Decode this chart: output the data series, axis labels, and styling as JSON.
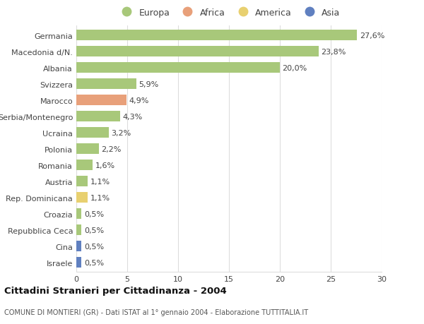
{
  "countries": [
    "Germania",
    "Macedonia d/N.",
    "Albania",
    "Svizzera",
    "Marocco",
    "Serbia/Montenegro",
    "Ucraina",
    "Polonia",
    "Romania",
    "Austria",
    "Rep. Dominicana",
    "Croazia",
    "Repubblica Ceca",
    "Cina",
    "Israele"
  ],
  "values": [
    27.6,
    23.8,
    20.0,
    5.9,
    4.9,
    4.3,
    3.2,
    2.2,
    1.6,
    1.1,
    1.1,
    0.5,
    0.5,
    0.5,
    0.5
  ],
  "labels": [
    "27,6%",
    "23,8%",
    "20,0%",
    "5,9%",
    "4,9%",
    "4,3%",
    "3,2%",
    "2,2%",
    "1,6%",
    "1,1%",
    "1,1%",
    "0,5%",
    "0,5%",
    "0,5%",
    "0,5%"
  ],
  "continents": [
    "Europa",
    "Europa",
    "Europa",
    "Europa",
    "Africa",
    "Europa",
    "Europa",
    "Europa",
    "Europa",
    "Europa",
    "America",
    "Europa",
    "Europa",
    "Asia",
    "Asia"
  ],
  "colors": {
    "Europa": "#a8c87a",
    "Africa": "#e8a07a",
    "America": "#e8d070",
    "Asia": "#6080c0"
  },
  "xlim": [
    0,
    30
  ],
  "xticks": [
    0,
    5,
    10,
    15,
    20,
    25,
    30
  ],
  "title": "Cittadini Stranieri per Cittadinanza - 2004",
  "subtitle": "COMUNE DI MONTIERI (GR) - Dati ISTAT al 1° gennaio 2004 - Elaborazione TUTTITALIA.IT",
  "bg_color": "#ffffff",
  "grid_color": "#dddddd",
  "bar_height": 0.65,
  "label_fontsize": 8,
  "tick_fontsize": 8,
  "title_fontsize": 9.5,
  "subtitle_fontsize": 7
}
